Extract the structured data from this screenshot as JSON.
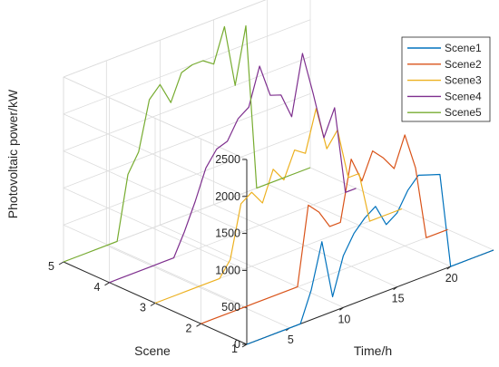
{
  "chart_data": {
    "type": "line",
    "view": "3d",
    "xlabel": "Time/h",
    "ylabel": "Scene",
    "zlabel": "Photovoltaic power/kW",
    "xlim": [
      1,
      24
    ],
    "ylim": [
      1,
      5
    ],
    "zlim": [
      0,
      2500
    ],
    "xticks": [
      5,
      10,
      15,
      20
    ],
    "yticks": [
      1,
      2,
      3,
      4,
      5
    ],
    "zticks": [
      0,
      500,
      1000,
      1500,
      2000,
      2500
    ],
    "grid": true,
    "legend_position": "top-right",
    "series": [
      {
        "name": "Scene1",
        "y": 1,
        "color": "#0072BD",
        "values": [
          0,
          0,
          0,
          0,
          0,
          0,
          400,
          1000,
          200,
          700,
          950,
          1100,
          1200,
          900,
          1000,
          1250,
          1400,
          1350,
          1300,
          0,
          0,
          0,
          0,
          0
        ]
      },
      {
        "name": "Scene2",
        "y": 2,
        "color": "#D95319",
        "values": [
          0,
          0,
          0,
          0,
          0,
          0,
          0,
          0,
          0,
          0,
          1050,
          900,
          650,
          650,
          1450,
          1100,
          1450,
          1300,
          1100,
          1500,
          1000,
          0,
          0,
          0
        ]
      },
      {
        "name": "Scene3",
        "y": 3,
        "color": "#EDB120",
        "values": [
          0,
          0,
          0,
          0,
          0,
          0,
          0,
          200,
          900,
          1000,
          800,
          1200,
          1000,
          1350,
          1250,
          1800,
          1200,
          1400,
          700,
          700,
          0,
          0,
          0,
          0
        ]
      },
      {
        "name": "Scene4",
        "y": 4,
        "color": "#7E2F8E",
        "values": [
          0,
          0,
          0,
          0,
          0,
          0,
          0,
          300,
          650,
          1050,
          1250,
          1300,
          1550,
          1650,
          2150,
          1700,
          1650,
          1300,
          2100,
          1500,
          850,
          1200,
          0,
          0
        ]
      },
      {
        "name": "Scene5",
        "y": 5,
        "color": "#77AC30",
        "values": [
          0,
          0,
          0,
          0,
          0,
          0,
          850,
          1100,
          1750,
          1900,
          1600,
          1950,
          2000,
          2000,
          1900,
          2350,
          1500,
          2250,
          0,
          0,
          0,
          0,
          0,
          0
        ]
      }
    ]
  }
}
